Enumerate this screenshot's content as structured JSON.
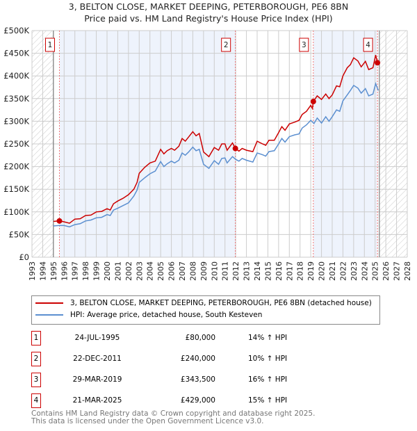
{
  "chart_data": {
    "type": "line",
    "title": "3, BELTON CLOSE, MARKET DEEPING, PETERBOROUGH, PE6 8BN",
    "subtitle": "Price paid vs. HM Land Registry's House Price Index (HPI)",
    "xlim": [
      1993,
      2028
    ],
    "ylim": [
      0,
      500000
    ],
    "x_ticks": [
      "1993",
      "1994",
      "1995",
      "1996",
      "1997",
      "1998",
      "1999",
      "2000",
      "2001",
      "2002",
      "2003",
      "2004",
      "2005",
      "2006",
      "2007",
      "2008",
      "2009",
      "2010",
      "2011",
      "2012",
      "2013",
      "2014",
      "2015",
      "2016",
      "2017",
      "2018",
      "2019",
      "2020",
      "2021",
      "2022",
      "2023",
      "2024",
      "2025",
      "2026",
      "2027",
      "2028"
    ],
    "y_ticks": [
      {
        "v": 0,
        "label": "£0"
      },
      {
        "v": 50000,
        "label": "£50K"
      },
      {
        "v": 100000,
        "label": "£100K"
      },
      {
        "v": 150000,
        "label": "£150K"
      },
      {
        "v": 200000,
        "label": "£200K"
      },
      {
        "v": 250000,
        "label": "£250K"
      },
      {
        "v": 300000,
        "label": "£300K"
      },
      {
        "v": 350000,
        "label": "£350K"
      },
      {
        "v": 400000,
        "label": "£400K"
      },
      {
        "v": 450000,
        "label": "£450K"
      },
      {
        "v": 500000,
        "label": "£500K"
      }
    ],
    "data_range": [
      1995.0,
      2025.4
    ],
    "colors": {
      "property": "#cc0000",
      "hpi": "#5b8fd0",
      "shade": "#eef3fc"
    },
    "series": [
      {
        "name": "3, BELTON CLOSE, MARKET DEEPING, PETERBOROUGH, PE6 8BN (detached house)",
        "key": "property",
        "points": [
          [
            1995.0,
            79
          ],
          [
            1995.56,
            80
          ],
          [
            1996,
            78
          ],
          [
            1996.5,
            75
          ],
          [
            1997,
            84
          ],
          [
            1997.5,
            85
          ],
          [
            1998,
            92
          ],
          [
            1998.5,
            93
          ],
          [
            1999,
            100
          ],
          [
            1999.5,
            101
          ],
          [
            2000,
            107
          ],
          [
            2000.3,
            104
          ],
          [
            2000.6,
            118
          ],
          [
            2001,
            124
          ],
          [
            2001.5,
            130
          ],
          [
            2002,
            138
          ],
          [
            2002.5,
            150
          ],
          [
            2002.8,
            165
          ],
          [
            2003,
            185
          ],
          [
            2003.5,
            198
          ],
          [
            2004,
            208
          ],
          [
            2004.5,
            212
          ],
          [
            2005,
            238
          ],
          [
            2005.3,
            228
          ],
          [
            2005.6,
            235
          ],
          [
            2006,
            240
          ],
          [
            2006.3,
            236
          ],
          [
            2006.7,
            245
          ],
          [
            2007,
            262
          ],
          [
            2007.3,
            256
          ],
          [
            2007.6,
            265
          ],
          [
            2008,
            277
          ],
          [
            2008.3,
            268
          ],
          [
            2008.6,
            273
          ],
          [
            2009,
            232
          ],
          [
            2009.5,
            222
          ],
          [
            2010,
            242
          ],
          [
            2010.4,
            236
          ],
          [
            2010.7,
            250
          ],
          [
            2011,
            250
          ],
          [
            2011.2,
            236
          ],
          [
            2011.7,
            252
          ],
          [
            2011.97,
            240
          ],
          [
            2012.3,
            234
          ],
          [
            2012.6,
            240
          ],
          [
            2013,
            236
          ],
          [
            2013.6,
            233
          ],
          [
            2014,
            256
          ],
          [
            2014.5,
            250
          ],
          [
            2014.8,
            247
          ],
          [
            2015.1,
            258
          ],
          [
            2015.6,
            258
          ],
          [
            2016,
            275
          ],
          [
            2016.3,
            288
          ],
          [
            2016.6,
            280
          ],
          [
            2017,
            294
          ],
          [
            2017.5,
            298
          ],
          [
            2017.9,
            302
          ],
          [
            2018.2,
            315
          ],
          [
            2018.6,
            322
          ],
          [
            2019,
            335
          ],
          [
            2019.15,
            328
          ],
          [
            2019.24,
            343.5
          ],
          [
            2019.6,
            356
          ],
          [
            2020,
            348
          ],
          [
            2020.4,
            360
          ],
          [
            2020.7,
            350
          ],
          [
            2021,
            358
          ],
          [
            2021.4,
            378
          ],
          [
            2021.7,
            376
          ],
          [
            2022,
            400
          ],
          [
            2022.4,
            418
          ],
          [
            2022.7,
            425
          ],
          [
            2023,
            440
          ],
          [
            2023.4,
            433
          ],
          [
            2023.7,
            420
          ],
          [
            2024.1,
            432
          ],
          [
            2024.4,
            414
          ],
          [
            2024.8,
            418
          ],
          [
            2025.05,
            446
          ],
          [
            2025.22,
            429
          ]
        ]
      },
      {
        "name": "HPI: Average price, detached house, South Kesteven",
        "key": "hpi",
        "points": [
          [
            1995.0,
            69
          ],
          [
            1995.5,
            70
          ],
          [
            1996,
            70
          ],
          [
            1996.5,
            67
          ],
          [
            1997,
            72
          ],
          [
            1997.5,
            74
          ],
          [
            1998,
            80
          ],
          [
            1998.5,
            82
          ],
          [
            1999,
            87
          ],
          [
            1999.5,
            88
          ],
          [
            2000,
            94
          ],
          [
            2000.3,
            92
          ],
          [
            2000.6,
            104
          ],
          [
            2001,
            108
          ],
          [
            2001.5,
            114
          ],
          [
            2002,
            120
          ],
          [
            2002.5,
            135
          ],
          [
            2002.8,
            148
          ],
          [
            2003,
            165
          ],
          [
            2003.5,
            175
          ],
          [
            2004,
            184
          ],
          [
            2004.5,
            190
          ],
          [
            2005,
            211
          ],
          [
            2005.3,
            200
          ],
          [
            2005.6,
            206
          ],
          [
            2006,
            212
          ],
          [
            2006.3,
            208
          ],
          [
            2006.7,
            214
          ],
          [
            2007,
            230
          ],
          [
            2007.3,
            225
          ],
          [
            2007.6,
            232
          ],
          [
            2008,
            243
          ],
          [
            2008.3,
            235
          ],
          [
            2008.6,
            238
          ],
          [
            2009,
            205
          ],
          [
            2009.5,
            196
          ],
          [
            2010,
            213
          ],
          [
            2010.4,
            205
          ],
          [
            2010.7,
            218
          ],
          [
            2011,
            219
          ],
          [
            2011.2,
            208
          ],
          [
            2011.7,
            222
          ],
          [
            2012,
            216
          ],
          [
            2012.3,
            212
          ],
          [
            2012.6,
            218
          ],
          [
            2013,
            214
          ],
          [
            2013.6,
            210
          ],
          [
            2014,
            230
          ],
          [
            2014.5,
            226
          ],
          [
            2014.8,
            223
          ],
          [
            2015.1,
            233
          ],
          [
            2015.6,
            235
          ],
          [
            2016,
            250
          ],
          [
            2016.3,
            262
          ],
          [
            2016.6,
            254
          ],
          [
            2017,
            266
          ],
          [
            2017.5,
            270
          ],
          [
            2017.9,
            272
          ],
          [
            2018.2,
            285
          ],
          [
            2018.6,
            292
          ],
          [
            2019,
            302
          ],
          [
            2019.3,
            295
          ],
          [
            2019.6,
            307
          ],
          [
            2020,
            296
          ],
          [
            2020.4,
            310
          ],
          [
            2020.7,
            300
          ],
          [
            2021,
            310
          ],
          [
            2021.4,
            325
          ],
          [
            2021.7,
            322
          ],
          [
            2022,
            345
          ],
          [
            2022.4,
            358
          ],
          [
            2022.7,
            368
          ],
          [
            2023,
            379
          ],
          [
            2023.4,
            373
          ],
          [
            2023.7,
            362
          ],
          [
            2024.1,
            372
          ],
          [
            2024.4,
            356
          ],
          [
            2024.8,
            360
          ],
          [
            2025.05,
            383
          ],
          [
            2025.3,
            368
          ]
        ]
      }
    ],
    "sales": [
      {
        "num": "1",
        "x": 1995.56,
        "price": 80000,
        "date": "24-JUL-1995",
        "price_label": "£80,000",
        "hpi": "14% ↑ HPI"
      },
      {
        "num": "2",
        "x": 2011.97,
        "price": 240000,
        "date": "22-DEC-2011",
        "price_label": "£240,000",
        "hpi": "10% ↑ HPI"
      },
      {
        "num": "3",
        "x": 2019.24,
        "price": 343500,
        "date": "29-MAR-2019",
        "price_label": "£343,500",
        "hpi": "16% ↑ HPI"
      },
      {
        "num": "4",
        "x": 2025.22,
        "price": 429000,
        "date": "21-MAR-2025",
        "price_label": "£429,000",
        "hpi": "15% ↑ HPI"
      }
    ]
  },
  "title_line1": "3, BELTON CLOSE, MARKET DEEPING, PETERBOROUGH, PE6 8BN",
  "title_line2": "Price paid vs. HM Land Registry's House Price Index (HPI)",
  "legend": {
    "property": "3, BELTON CLOSE, MARKET DEEPING, PETERBOROUGH, PE6 8BN (detached house)",
    "hpi": "HPI: Average price, detached house, South Kesteven"
  },
  "footer": {
    "line1": "Contains HM Land Registry data © Crown copyright and database right 2025.",
    "line2": "This data is licensed under the Open Government Licence v3.0."
  }
}
